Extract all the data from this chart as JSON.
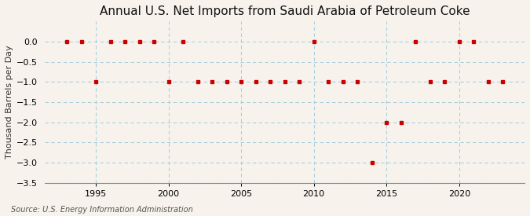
{
  "title": "Annual U.S. Net Imports from Saudi Arabia of Petroleum Coke",
  "ylabel": "Thousand Barrels per Day",
  "source": "Source: U.S. Energy Information Administration",
  "years": [
    1993,
    1994,
    1995,
    1996,
    1997,
    1998,
    1999,
    2000,
    2001,
    2002,
    2003,
    2004,
    2005,
    2006,
    2007,
    2008,
    2009,
    2010,
    2011,
    2012,
    2013,
    2014,
    2015,
    2016,
    2017,
    2018,
    2019,
    2020,
    2021,
    2022,
    2023
  ],
  "values": [
    0,
    0,
    -1,
    0,
    0,
    0,
    0,
    -1,
    0,
    -1,
    -1,
    -1,
    -1,
    -1,
    -1,
    -1,
    -1,
    0,
    -1,
    -1,
    -1,
    -3,
    -2,
    -2,
    0,
    -1,
    -1,
    0,
    0,
    -1,
    -1
  ],
  "ylim": [
    -3.5,
    0.5
  ],
  "yticks": [
    0.0,
    -0.5,
    -1.0,
    -1.5,
    -2.0,
    -2.5,
    -3.0,
    -3.5
  ],
  "xticks": [
    1995,
    2000,
    2005,
    2010,
    2015,
    2020
  ],
  "xlim": [
    1991.5,
    2024.5
  ],
  "background_color": "#f7f3ec",
  "plot_bg_color": "#f7f3ec",
  "grid_color": "#aacfdf",
  "marker_color": "#cc0000",
  "marker_size": 3.5,
  "title_fontsize": 11,
  "label_fontsize": 8,
  "tick_fontsize": 8,
  "source_fontsize": 7
}
